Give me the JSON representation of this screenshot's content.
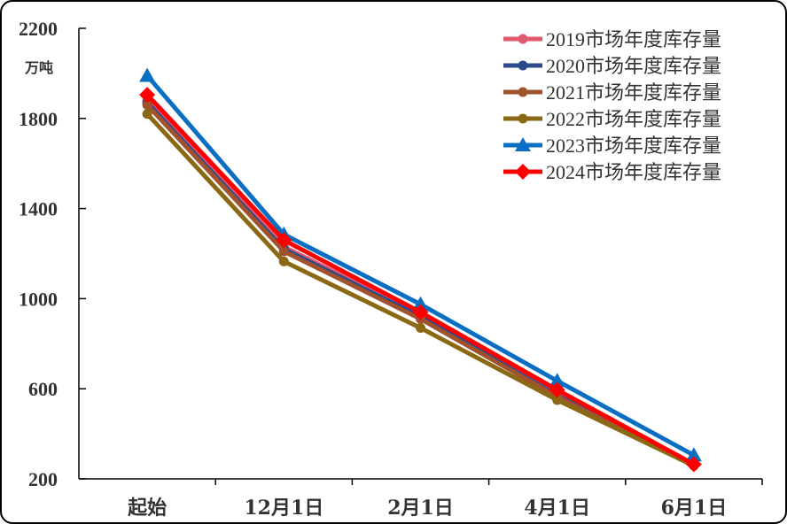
{
  "chart_data": {
    "type": "line",
    "title": "",
    "xlabel": "",
    "ylabel": "",
    "unit_label": "万吨",
    "categories": [
      "起始",
      "12月1日",
      "2月1日",
      "4月1日",
      "6月1日"
    ],
    "ylim": [
      200,
      2200
    ],
    "yticks": [
      200,
      600,
      1000,
      1400,
      1800,
      2200
    ],
    "grid": false,
    "legend_position": "top-right",
    "series": [
      {
        "name": "2019市场年度库存量",
        "color": "#e05a6e",
        "marker": "circle",
        "values": [
          1880,
          1230,
          930,
          575,
          265
        ]
      },
      {
        "name": "2020市场年度库存量",
        "color": "#2c4a8c",
        "marker": "circle",
        "values": [
          1870,
          1220,
          920,
          570,
          262
        ]
      },
      {
        "name": "2021市场年度库存量",
        "color": "#a0522d",
        "marker": "circle",
        "values": [
          1860,
          1210,
          910,
          565,
          260
        ]
      },
      {
        "name": "2022市场年度库存量",
        "color": "#8b6914",
        "marker": "circle",
        "values": [
          1820,
          1165,
          870,
          550,
          258
        ]
      },
      {
        "name": "2023市场年度库存量",
        "color": "#0a6fc2",
        "marker": "triangle",
        "values": [
          1990,
          1285,
          975,
          635,
          305
        ]
      },
      {
        "name": "2024市场年度库存量",
        "color": "#ff0000",
        "marker": "diamond",
        "values": [
          1905,
          1260,
          940,
          595,
          265
        ]
      }
    ]
  }
}
